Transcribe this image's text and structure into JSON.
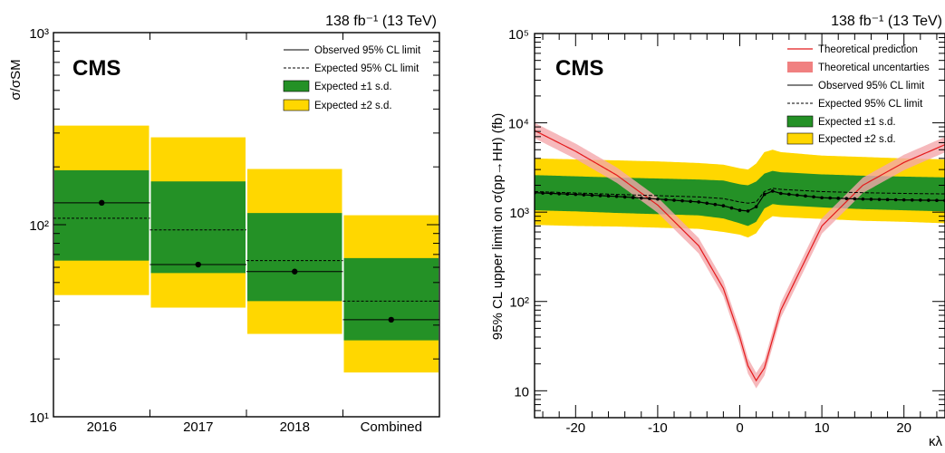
{
  "colors": {
    "yellow": "#ffd700",
    "green": "#249126",
    "red": "#e41a1c",
    "red_band": "#f4a8ab"
  },
  "chart_data": [
    {
      "type": "bar",
      "title": "138 fb⁻¹ (13 TeV)",
      "experiment": "CMS",
      "ylabel": "σ/σSM",
      "yscale": "log",
      "ylim": [
        10,
        1000
      ],
      "ytick_labels": [
        "10¹",
        "10²",
        "10³"
      ],
      "categories": [
        "2016",
        "2017",
        "2018",
        "Combined"
      ],
      "series": [
        {
          "name": "Observed 95% CL limit",
          "values": [
            130,
            62,
            57,
            32
          ]
        },
        {
          "name": "Expected 95% CL limit",
          "values": [
            108,
            94,
            65,
            40
          ]
        },
        {
          "name": "Expected ±1 s.d.",
          "values": [
            [
              65,
              192
            ],
            [
              56,
              168
            ],
            [
              40,
              115
            ],
            [
              25,
              67
            ]
          ]
        },
        {
          "name": "Expected ±2 s.d.",
          "values": [
            [
              43,
              328
            ],
            [
              37,
              285
            ],
            [
              27,
              195
            ],
            [
              17,
              112
            ]
          ]
        }
      ],
      "legend": [
        "Observed 95% CL limit",
        "Expected 95% CL limit",
        "Expected ±1 s.d.",
        "Expected ±2 s.d."
      ],
      "legend_position": "top-right"
    },
    {
      "type": "line",
      "title": "138 fb⁻¹ (13 TeV)",
      "experiment": "CMS",
      "ylabel": "95% CL upper limit on σ(pp→HH) (fb)",
      "xlabel": "κλ",
      "yscale": "log",
      "xlim": [
        -25,
        25
      ],
      "ylim": [
        5,
        100000
      ],
      "xtick_labels": [
        "-20",
        "-10",
        "0",
        "10",
        "20"
      ],
      "ytick_labels": [
        "10",
        "10²",
        "10³",
        "10⁴",
        "10⁵"
      ],
      "x": [
        -25,
        -20,
        -15,
        -10,
        -5,
        -2,
        0,
        1,
        2,
        3,
        4,
        5,
        10,
        15,
        20,
        25
      ],
      "series": [
        {
          "name": "Theoretical prediction",
          "values": [
            8200,
            4800,
            2600,
            1200,
            420,
            140,
            40,
            19,
            13,
            18,
            38,
            80,
            700,
            2000,
            3600,
            5700
          ]
        },
        {
          "name": "Observed 95% CL limit",
          "values": [
            1650,
            1580,
            1500,
            1400,
            1300,
            1180,
            1050,
            1030,
            1150,
            1580,
            1720,
            1620,
            1450,
            1400,
            1370,
            1350
          ]
        },
        {
          "name": "Expected 95% CL limit",
          "values": [
            1700,
            1640,
            1580,
            1530,
            1480,
            1420,
            1300,
            1260,
            1300,
            1700,
            1850,
            1800,
            1700,
            1650,
            1620,
            1600
          ]
        },
        {
          "name": "Expected ±1 s.d.",
          "lower": [
            1050,
            1020,
            980,
            950,
            920,
            850,
            750,
            700,
            780,
            1100,
            1230,
            1200,
            1130,
            1080,
            1050,
            1020
          ],
          "upper": [
            2600,
            2520,
            2440,
            2380,
            2320,
            2260,
            2050,
            2000,
            2200,
            2700,
            2900,
            2800,
            2650,
            2560,
            2500,
            2450
          ]
        },
        {
          "name": "Expected ±2 s.d.",
          "lower": [
            720,
            700,
            690,
            670,
            650,
            600,
            560,
            520,
            580,
            780,
            900,
            880,
            840,
            800,
            780,
            750
          ],
          "upper": [
            4000,
            3900,
            3800,
            3700,
            3550,
            3400,
            3100,
            3000,
            3500,
            4700,
            5000,
            4700,
            4300,
            4150,
            4000,
            3900
          ]
        }
      ],
      "legend": [
        "Theoretical prediction",
        "Theoretical uncentarties",
        "Observed 95% CL limit",
        "Expected 95% CL limit",
        "Expected ±1 s.d.",
        "Expected ±2 s.d."
      ],
      "legend_position": "top-right"
    }
  ]
}
